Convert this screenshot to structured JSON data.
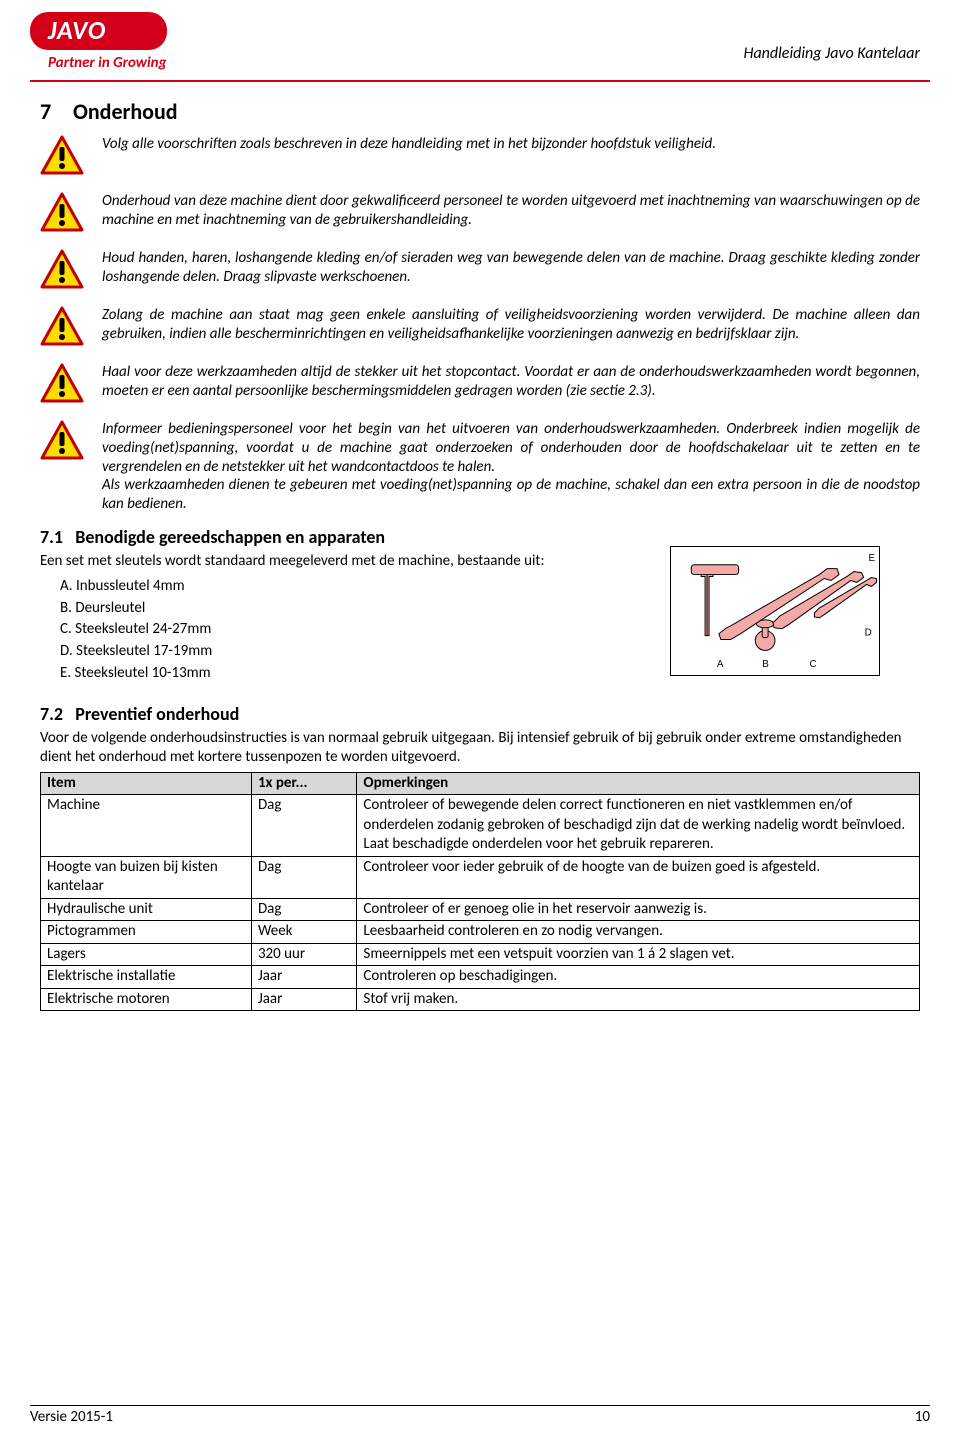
{
  "header": {
    "logo_text": "JAVO",
    "tagline": "Partner in Growing",
    "doc_title": "Handleiding Javo Kantelaar"
  },
  "section": {
    "number": "7",
    "title": "Onderhoud"
  },
  "warnings": [
    "Volg alle voorschriften zoals beschreven in deze handleiding met in het bijzonder hoofdstuk veiligheid.",
    "Onderhoud van deze machine dient door gekwalificeerd personeel te worden uitgevoerd met inachtneming van waarschuwingen op de machine en met inachtneming van de gebruikershandleiding.",
    "Houd handen, haren, loshangende kleding en/of sieraden weg van bewegende delen van de machine. Draag geschikte kleding zonder loshangende delen. Draag slipvaste werkschoenen.",
    "Zolang de machine aan staat mag geen enkele aansluiting of veiligheidsvoorziening worden verwijderd. De machine alleen dan gebruiken, indien alle bescherminrichtingen en veiligheidsafhankelijke voorzieningen aanwezig en bedrijfsklaar zijn.",
    "Haal voor deze werkzaamheden altijd de stekker uit het stopcontact. Voordat er aan de onderhoudswerkzaamheden wordt begonnen, moeten er een aantal persoonlijke beschermingsmiddelen gedragen worden (zie sectie 2.3).",
    "Informeer bedieningspersoneel voor het begin van het uitvoeren van onderhoudswerkzaamheden. Onderbreek indien mogelijk de voeding(net)spanning, voordat u de machine gaat onderzoeken of onderhouden door de hoofdschakelaar uit te zetten en te vergrendelen en de netstekker uit het wandcontactdoos te halen.\nAls werkzaamheden dienen te gebeuren met voeding(net)spanning op de machine, schakel dan een extra persoon in die de noodstop kan bedienen."
  ],
  "sub1": {
    "number": "7.1",
    "title": "Benodigde gereedschappen en apparaten",
    "intro": "Een set met sleutels wordt standaard meegeleverd met de machine, bestaande uit:",
    "items": [
      {
        "letter": "A.",
        "label": "Inbussleutel 4mm"
      },
      {
        "letter": "B.",
        "label": "Deursleutel"
      },
      {
        "letter": "C.",
        "label": "Steeksleutel 24-27mm"
      },
      {
        "letter": "D.",
        "label": "Steeksleutel 17-19mm"
      },
      {
        "letter": "E.",
        "label": "Steeksleutel 10-13mm"
      }
    ],
    "image_labels": {
      "A": "A",
      "B": "B",
      "C": "C",
      "D": "D",
      "E": "E"
    },
    "image_colors": {
      "fill": "#f4a9a9",
      "stroke": "#000000"
    }
  },
  "sub2": {
    "number": "7.2",
    "title": "Preventief onderhoud",
    "intro": "Voor de volgende onderhoudsinstructies is van normaal gebruik uitgegaan. Bij intensief gebruik of bij gebruik onder extreme omstandigheden dient het onderhoud met kortere tussenpozen te worden uitgevoerd.",
    "columns": [
      "Item",
      "1x per...",
      "Opmerkingen"
    ],
    "rows": [
      [
        "Machine",
        "Dag",
        "Controleer of bewegende delen correct functioneren en niet vastklemmen en/of onderdelen zodanig gebroken of beschadigd zijn dat de werking nadelig wordt beïnvloed. Laat beschadigde onderdelen voor het gebruik repareren."
      ],
      [
        "Hoogte van buizen bij kisten kantelaar",
        "Dag",
        "Controleer voor ieder gebruik of de hoogte van de buizen goed is afgesteld."
      ],
      [
        "Hydraulische unit",
        "Dag",
        "Controleer of er genoeg olie in het reservoir aanwezig is."
      ],
      [
        "Pictogrammen",
        "Week",
        "Leesbaarheid controleren en zo nodig vervangen."
      ],
      [
        "Lagers",
        "320 uur",
        "Smeernippels met een vetspuit voorzien van 1 á 2 slagen vet."
      ],
      [
        "Elektrische installatie",
        "Jaar",
        "Controleren op beschadigingen."
      ],
      [
        "Elektrische motoren",
        "Jaar",
        "Stof vrij maken."
      ]
    ]
  },
  "footer": {
    "version": "Versie 2015-1",
    "page": "10"
  },
  "colors": {
    "brand_red": "#d4001a",
    "table_header_bg": "#d8d8d8",
    "warning_yellow": "#fddc00",
    "warning_border": "#c00000"
  }
}
